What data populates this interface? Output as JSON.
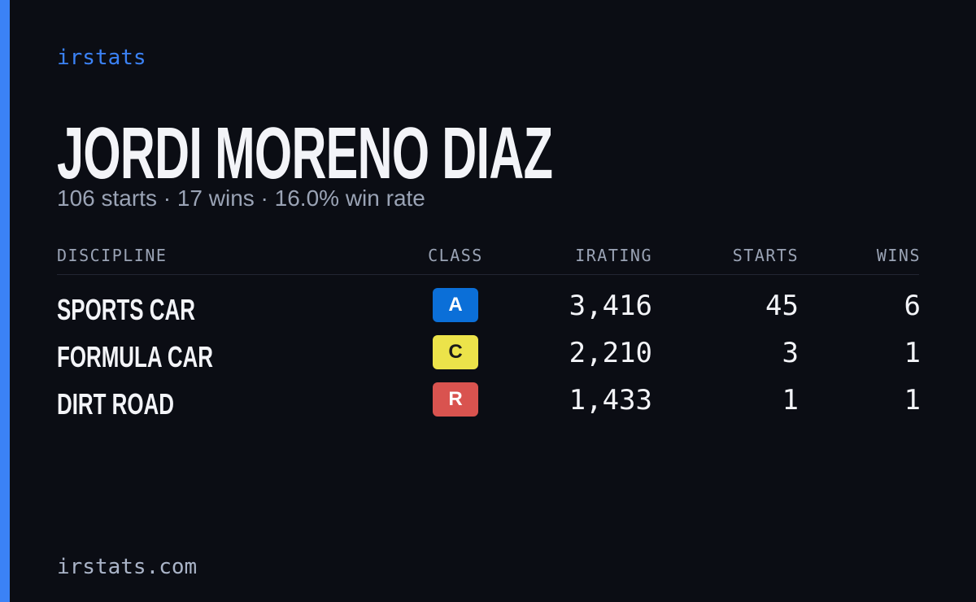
{
  "brand": "irstats",
  "driver": {
    "name": "JORDI MORENO DIAZ",
    "summary": "106 starts · 17 wins · 16.0% win rate"
  },
  "table": {
    "headers": [
      "DISCIPLINE",
      "CLASS",
      "IRATING",
      "STARTS",
      "WINS"
    ],
    "rows": [
      [
        "SPORTS CAR",
        "A",
        "3,416",
        "45",
        "6"
      ],
      [
        "FORMULA CAR",
        "C",
        "2,210",
        "3",
        "1"
      ],
      [
        "DIRT ROAD",
        "R",
        "1,433",
        "1",
        "1"
      ]
    ]
  },
  "footer": "irstats.com"
}
